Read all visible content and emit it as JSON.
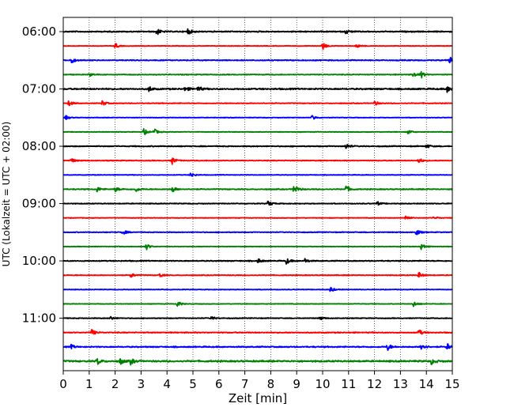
{
  "chart_data": {
    "type": "line",
    "title": "",
    "xlabel": "Zeit  [min]",
    "ylabel": "UTC (Lokalzeit = UTC + 02:00)",
    "xlim": [
      0,
      15
    ],
    "x_ticks": [
      0,
      1,
      2,
      3,
      4,
      5,
      6,
      7,
      8,
      9,
      10,
      11,
      12,
      13,
      14,
      15
    ],
    "y_tick_labels": [
      "06:00",
      "07:00",
      "08:00",
      "09:00",
      "10:00",
      "11:00"
    ],
    "y_tick_rows": [
      0,
      4,
      8,
      12,
      16,
      20
    ],
    "grid": "vertical dotted at each minute",
    "trace_interval_min": 15,
    "trace_colors": [
      "#000000",
      "#ff0000",
      "#0000ff",
      "#008000"
    ],
    "trace_start_times": [
      "06:00",
      "06:15",
      "06:30",
      "06:45",
      "07:00",
      "07:15",
      "07:30",
      "07:45",
      "08:00",
      "08:15",
      "08:30",
      "08:45",
      "09:00",
      "09:15",
      "09:30",
      "09:45",
      "10:00",
      "10:15",
      "10:30",
      "10:45",
      "11:00",
      "11:15",
      "11:30",
      "11:45"
    ],
    "traces": [
      {
        "noise": 0.6,
        "events": [
          [
            3.6,
            1.4
          ],
          [
            4.8,
            1.2
          ],
          [
            10.9,
            0.9
          ]
        ]
      },
      {
        "noise": 0.3,
        "events": [
          [
            2.0,
            1.1
          ],
          [
            10.0,
            1.6
          ],
          [
            11.3,
            0.9
          ]
        ]
      },
      {
        "noise": 0.5,
        "events": [
          [
            0.3,
            1.3
          ],
          [
            14.9,
            1.4
          ]
        ]
      },
      {
        "noise": 0.4,
        "events": [
          [
            13.5,
            1.2
          ],
          [
            13.8,
            1.2
          ],
          [
            1.0,
            0.7
          ]
        ]
      },
      {
        "noise": 0.7,
        "events": [
          [
            3.3,
            1.1
          ],
          [
            4.7,
            1.0
          ],
          [
            5.2,
            1.1
          ],
          [
            14.8,
            1.3
          ]
        ]
      },
      {
        "noise": 0.4,
        "events": [
          [
            0.2,
            1.2
          ],
          [
            1.5,
            1.1
          ],
          [
            12.0,
            1.0
          ]
        ]
      },
      {
        "noise": 0.3,
        "events": [
          [
            9.6,
            1.1
          ],
          [
            0.1,
            0.8
          ]
        ]
      },
      {
        "noise": 0.3,
        "events": [
          [
            3.1,
            1.4
          ],
          [
            3.5,
            1.3
          ],
          [
            13.3,
            1.0
          ]
        ]
      },
      {
        "noise": 0.5,
        "events": [
          [
            10.9,
            1.1
          ],
          [
            14.0,
            0.8
          ]
        ]
      },
      {
        "noise": 0.4,
        "events": [
          [
            0.3,
            1.0
          ],
          [
            4.2,
            1.4
          ],
          [
            13.7,
            1.1
          ]
        ]
      },
      {
        "noise": 0.3,
        "events": [
          [
            4.9,
            1.1
          ]
        ]
      },
      {
        "noise": 0.5,
        "events": [
          [
            1.3,
            1.0
          ],
          [
            2.0,
            1.0
          ],
          [
            2.8,
            0.9
          ],
          [
            4.2,
            1.3
          ],
          [
            8.9,
            2.2
          ],
          [
            10.9,
            1.5
          ]
        ]
      },
      {
        "noise": 0.4,
        "events": [
          [
            7.9,
            1.2
          ],
          [
            12.1,
            0.8
          ]
        ]
      },
      {
        "noise": 0.3,
        "events": [
          [
            13.2,
            1.2
          ],
          [
            14.3,
            0.7
          ]
        ]
      },
      {
        "noise": 0.4,
        "events": [
          [
            2.3,
            1.0
          ],
          [
            13.6,
            1.4
          ]
        ]
      },
      {
        "noise": 0.3,
        "events": [
          [
            3.2,
            1.3
          ],
          [
            13.8,
            1.4
          ]
        ]
      },
      {
        "noise": 0.5,
        "events": [
          [
            7.5,
            0.9
          ],
          [
            8.6,
            1.2
          ],
          [
            9.3,
            1.0
          ]
        ]
      },
      {
        "noise": 0.4,
        "events": [
          [
            2.6,
            1.0
          ],
          [
            3.7,
            1.0
          ],
          [
            13.7,
            1.3
          ]
        ]
      },
      {
        "noise": 0.3,
        "events": [
          [
            10.3,
            1.2
          ]
        ]
      },
      {
        "noise": 0.3,
        "events": [
          [
            4.4,
            1.2
          ],
          [
            13.5,
            1.2
          ]
        ]
      },
      {
        "noise": 0.4,
        "events": [
          [
            1.8,
            0.8
          ],
          [
            5.7,
            0.8
          ],
          [
            9.9,
            0.7
          ]
        ]
      },
      {
        "noise": 0.5,
        "events": [
          [
            1.1,
            1.3
          ],
          [
            13.7,
            1.3
          ]
        ]
      },
      {
        "noise": 0.6,
        "events": [
          [
            0.3,
            0.8
          ],
          [
            12.5,
            1.4
          ],
          [
            13.8,
            1.7
          ],
          [
            14.8,
            1.4
          ]
        ]
      },
      {
        "noise": 0.8,
        "events": [
          [
            1.3,
            1.5
          ],
          [
            2.2,
            1.3
          ],
          [
            2.6,
            1.2
          ],
          [
            14.2,
            1.2
          ]
        ]
      }
    ]
  }
}
